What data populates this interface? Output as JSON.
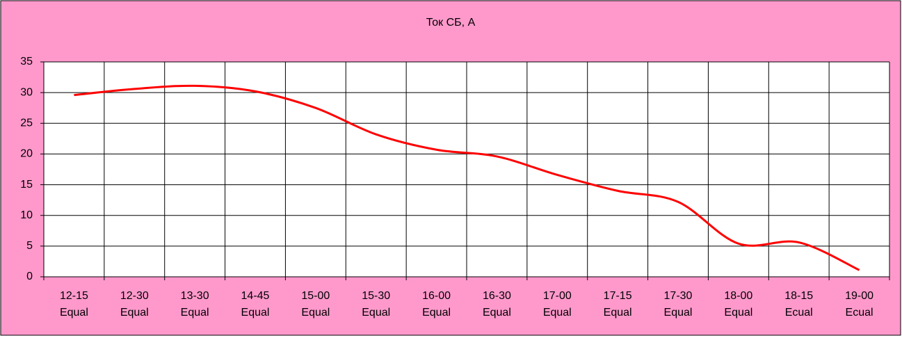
{
  "chart_data": {
    "type": "line",
    "title": "Ток СБ, А",
    "categories": [
      [
        "12-15",
        "Equal"
      ],
      [
        "12-30",
        "Equal"
      ],
      [
        "13-30",
        "Equal"
      ],
      [
        "14-45",
        "Equal"
      ],
      [
        "15-00",
        "Equal"
      ],
      [
        "15-30",
        "Equal"
      ],
      [
        "16-00",
        "Equal"
      ],
      [
        "16-30",
        "Equal"
      ],
      [
        "17-00",
        "Equal"
      ],
      [
        "17-15",
        "Equal"
      ],
      [
        "17-30",
        "Equal"
      ],
      [
        "18-00",
        "Equal"
      ],
      [
        "18-15",
        "Ecual"
      ],
      [
        "19-00",
        "Ecual"
      ]
    ],
    "series": [
      {
        "name": "Ток СБ, А",
        "color": "#ff0000",
        "values": [
          29.6,
          30.6,
          31.1,
          30.2,
          27.5,
          23.2,
          20.7,
          19.6,
          16.6,
          14.0,
          12.2,
          5.4,
          5.6,
          1.1
        ]
      }
    ],
    "ylim": [
      0,
      35
    ],
    "yticks": [
      0,
      5,
      10,
      15,
      20,
      25,
      30,
      35
    ],
    "grid": true
  }
}
